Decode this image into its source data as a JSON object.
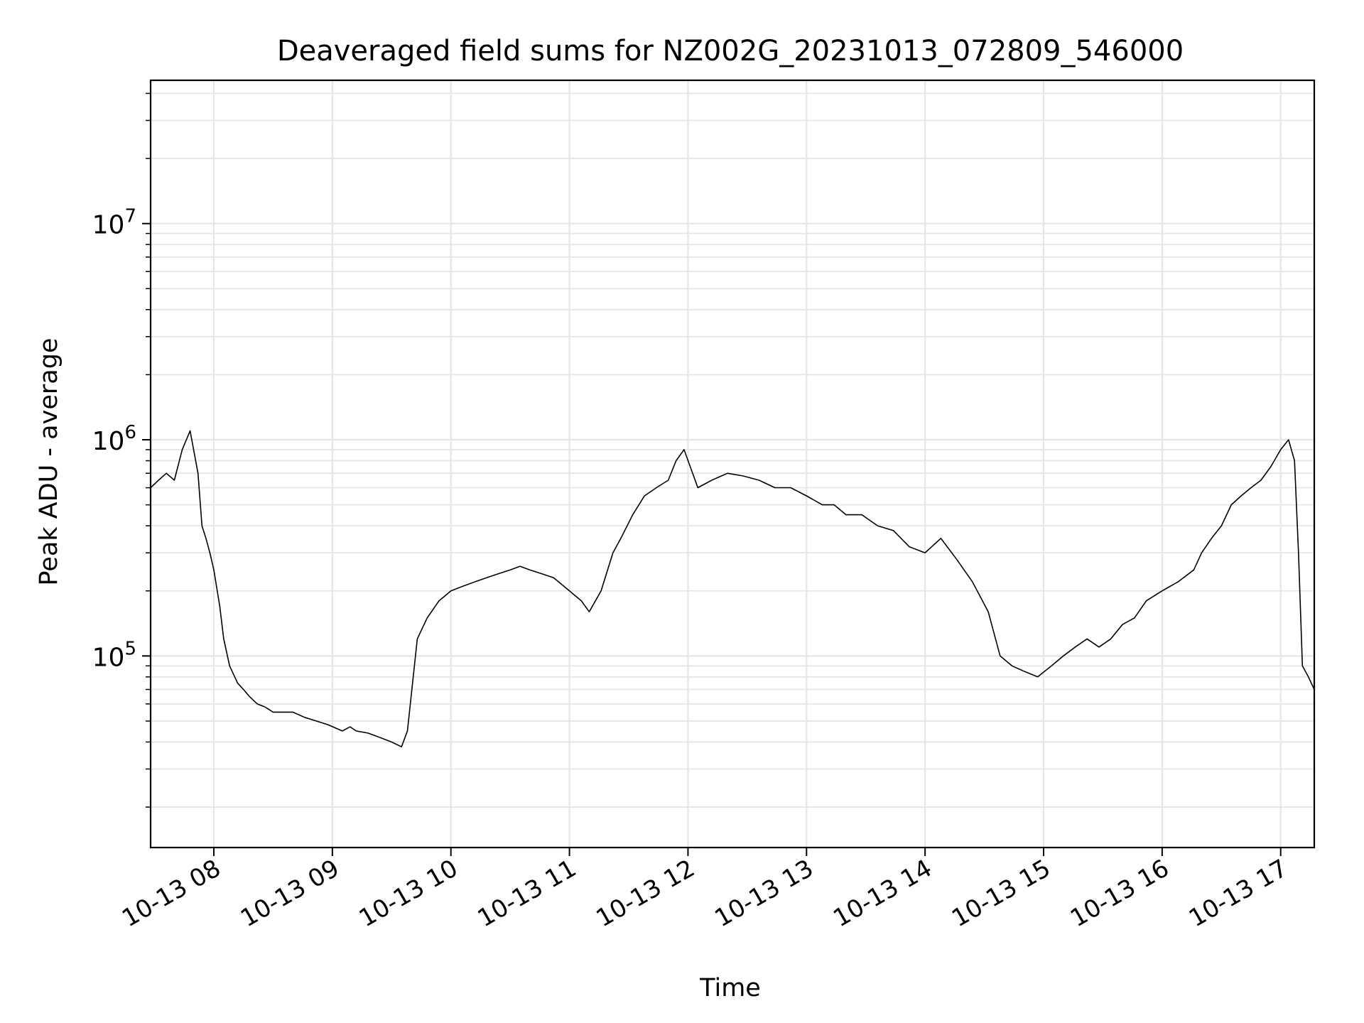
{
  "chart_data": {
    "type": "line",
    "title": "Deaveraged field sums for NZ002G_20231013_072809_546000",
    "xlabel": "Time",
    "ylabel": "Peak ADU - average",
    "yscale": "log",
    "xlim": [
      "2023-10-13 07:28",
      "2023-10-13 17:17"
    ],
    "ylim": [
      13000,
      46000000
    ],
    "x_ticks": [
      "10-13 08",
      "10-13 09",
      "10-13 10",
      "10-13 11",
      "10-13 12",
      "10-13 13",
      "10-13 14",
      "10-13 15",
      "10-13 16",
      "10-13 17"
    ],
    "x_tick_label_rotation_deg": 30,
    "y_ticks": [
      {
        "value": 100000,
        "base": "10",
        "exp": "5"
      },
      {
        "value": 1000000,
        "base": "10",
        "exp": "6"
      },
      {
        "value": 10000000,
        "base": "10",
        "exp": "7"
      }
    ],
    "grid": true,
    "legend": "none",
    "line_color": "#000000",
    "series": [
      {
        "x": [
          "2023-10-13 07:28",
          "2023-10-13 07:32",
          "2023-10-13 07:36",
          "2023-10-13 07:40",
          "2023-10-13 07:44",
          "2023-10-13 07:48",
          "2023-10-13 07:52",
          "2023-10-13 07:54",
          "2023-10-13 07:56",
          "2023-10-13 07:58",
          "2023-10-13 08:00",
          "2023-10-13 08:03",
          "2023-10-13 08:05",
          "2023-10-13 08:08",
          "2023-10-13 08:12",
          "2023-10-13 08:15",
          "2023-10-13 08:18",
          "2023-10-13 08:22",
          "2023-10-13 08:26",
          "2023-10-13 08:30",
          "2023-10-13 08:35",
          "2023-10-13 08:40",
          "2023-10-13 08:46",
          "2023-10-13 08:52",
          "2023-10-13 08:58",
          "2023-10-13 09:05",
          "2023-10-13 09:09",
          "2023-10-13 09:12",
          "2023-10-13 09:18",
          "2023-10-13 09:24",
          "2023-10-13 09:30",
          "2023-10-13 09:35",
          "2023-10-13 09:38",
          "2023-10-13 09:43",
          "2023-10-13 09:48",
          "2023-10-13 09:54",
          "2023-10-13 10:00",
          "2023-10-13 10:06",
          "2023-10-13 10:12",
          "2023-10-13 10:18",
          "2023-10-13 10:24",
          "2023-10-13 10:30",
          "2023-10-13 10:35",
          "2023-10-13 10:40",
          "2023-10-13 10:46",
          "2023-10-13 10:52",
          "2023-10-13 11:00",
          "2023-10-13 11:06",
          "2023-10-13 11:10",
          "2023-10-13 11:16",
          "2023-10-13 11:22",
          "2023-10-13 11:26",
          "2023-10-13 11:32",
          "2023-10-13 11:38",
          "2023-10-13 11:44",
          "2023-10-13 11:50",
          "2023-10-13 11:54",
          "2023-10-13 11:58",
          "2023-10-13 12:05",
          "2023-10-13 12:12",
          "2023-10-13 12:20",
          "2023-10-13 12:28",
          "2023-10-13 12:36",
          "2023-10-13 12:44",
          "2023-10-13 12:52",
          "2023-10-13 13:00",
          "2023-10-13 13:08",
          "2023-10-13 13:14",
          "2023-10-13 13:20",
          "2023-10-13 13:28",
          "2023-10-13 13:36",
          "2023-10-13 13:44",
          "2023-10-13 13:52",
          "2023-10-13 14:00",
          "2023-10-13 14:08",
          "2023-10-13 14:16",
          "2023-10-13 14:24",
          "2023-10-13 14:32",
          "2023-10-13 14:38",
          "2023-10-13 14:44",
          "2023-10-13 14:50",
          "2023-10-13 14:57",
          "2023-10-13 15:04",
          "2023-10-13 15:10",
          "2023-10-13 15:16",
          "2023-10-13 15:22",
          "2023-10-13 15:28",
          "2023-10-13 15:34",
          "2023-10-13 15:40",
          "2023-10-13 15:46",
          "2023-10-13 15:52",
          "2023-10-13 16:00",
          "2023-10-13 16:08",
          "2023-10-13 16:16",
          "2023-10-13 16:20",
          "2023-10-13 16:25",
          "2023-10-13 16:30",
          "2023-10-13 16:35",
          "2023-10-13 16:40",
          "2023-10-13 16:45",
          "2023-10-13 16:50",
          "2023-10-13 16:55",
          "2023-10-13 17:00",
          "2023-10-13 17:04",
          "2023-10-13 17:07",
          "2023-10-13 17:09",
          "2023-10-13 17:11",
          "2023-10-13 17:14",
          "2023-10-13 17:17"
        ],
        "y": [
          600000,
          650000,
          700000,
          650000,
          900000,
          1100000,
          700000,
          400000,
          350000,
          300000,
          250000,
          170000,
          120000,
          90000,
          75000,
          70000,
          65000,
          60000,
          58000,
          55000,
          55000,
          55000,
          52000,
          50000,
          48000,
          45000,
          47000,
          45000,
          44000,
          42000,
          40000,
          38000,
          45000,
          120000,
          150000,
          180000,
          200000,
          210000,
          220000,
          230000,
          240000,
          250000,
          260000,
          250000,
          240000,
          230000,
          200000,
          180000,
          160000,
          200000,
          300000,
          350000,
          450000,
          550000,
          600000,
          650000,
          800000,
          900000,
          600000,
          650000,
          700000,
          680000,
          650000,
          600000,
          600000,
          550000,
          500000,
          500000,
          450000,
          450000,
          400000,
          380000,
          320000,
          300000,
          350000,
          280000,
          220000,
          160000,
          100000,
          90000,
          85000,
          80000,
          90000,
          100000,
          110000,
          120000,
          110000,
          120000,
          140000,
          150000,
          180000,
          200000,
          220000,
          250000,
          300000,
          350000,
          400000,
          500000,
          550000,
          600000,
          650000,
          750000,
          900000,
          1000000,
          800000,
          300000,
          90000,
          80000,
          70000
        ]
      }
    ],
    "annotations": []
  }
}
